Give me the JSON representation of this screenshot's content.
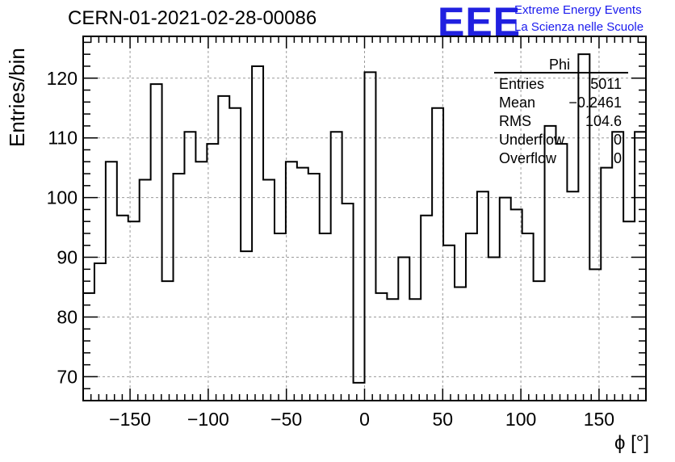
{
  "header": {
    "title": "CERN-01-2021-02-28-00086",
    "logo": "EEE",
    "org_line1": "Extreme Energy Events",
    "org_line2": "La Scienza nelle Scuole",
    "logo_color": "#2020e0"
  },
  "stats": {
    "name": "Phi",
    "rows": [
      {
        "label": "Entries",
        "value": "5011"
      },
      {
        "label": "Mean",
        "value": "−0.2461"
      },
      {
        "label": "RMS",
        "value": "104.6"
      },
      {
        "label": "Underflow",
        "value": "0"
      },
      {
        "label": "Overflow",
        "value": "0"
      }
    ]
  },
  "chart_data": {
    "type": "histogram",
    "title": "CERN-01-2021-02-28-00086",
    "xlabel": "ϕ [°]",
    "ylabel": "Entries/bin",
    "xlim": [
      -180,
      180
    ],
    "ylim": [
      66,
      127
    ],
    "bin_width": 7.2,
    "bin_edges_start": -180,
    "values": [
      84,
      89,
      106,
      97,
      96,
      103,
      119,
      86,
      104,
      111,
      106,
      109,
      117,
      115,
      91,
      122,
      103,
      94,
      106,
      105,
      104,
      94,
      111,
      99,
      69,
      121,
      84,
      83,
      90,
      83,
      97,
      115,
      92,
      85,
      94,
      101,
      90,
      100,
      98,
      94,
      86,
      112,
      109,
      101,
      124,
      88,
      105,
      111,
      96,
      111
    ],
    "xticks": [
      -150,
      -100,
      -50,
      0,
      50,
      100,
      150
    ],
    "xtick_labels": [
      "−150",
      "−100",
      "−50",
      "0",
      "50",
      "100",
      "150"
    ],
    "yticks": [
      70,
      80,
      90,
      100,
      110,
      120
    ],
    "ytick_labels": [
      "70",
      "80",
      "90",
      "100",
      "110",
      "120"
    ],
    "grid": true,
    "line_color": "#000000"
  }
}
